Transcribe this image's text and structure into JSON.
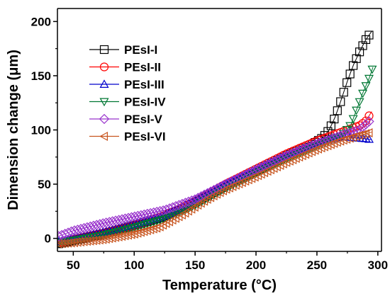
{
  "chart_data": {
    "type": "scatter",
    "title": "",
    "xlabel": "Temperature (°C)",
    "ylabel": "Dimension change (μm)",
    "xlim": [
      37,
      303
    ],
    "ylim": [
      -12,
      212
    ],
    "x_ticks": [
      50,
      100,
      150,
      200,
      250,
      300
    ],
    "y_ticks": [
      0,
      50,
      100,
      150,
      200
    ],
    "grid": false,
    "legend_position": "top-left",
    "series": [
      {
        "name": "PEsI-I",
        "color": "#000000",
        "marker": "square",
        "points": [
          [
            38,
            -5
          ],
          [
            50,
            -2
          ],
          [
            75,
            4
          ],
          [
            100,
            12
          ],
          [
            125,
            20
          ],
          [
            150,
            33
          ],
          [
            175,
            48
          ],
          [
            200,
            62
          ],
          [
            225,
            76
          ],
          [
            245,
            86
          ],
          [
            255,
            93
          ],
          [
            260,
            100
          ],
          [
            265,
            112
          ],
          [
            270,
            128
          ],
          [
            275,
            145
          ],
          [
            280,
            160
          ],
          [
            285,
            172
          ],
          [
            290,
            183
          ],
          [
            295,
            191
          ]
        ]
      },
      {
        "name": "PEsI-II",
        "color": "#ff0000",
        "marker": "circle",
        "points": [
          [
            38,
            -4
          ],
          [
            50,
            -1
          ],
          [
            75,
            5
          ],
          [
            100,
            12
          ],
          [
            125,
            21
          ],
          [
            150,
            34
          ],
          [
            175,
            50
          ],
          [
            200,
            64
          ],
          [
            225,
            78
          ],
          [
            250,
            90
          ],
          [
            270,
            98
          ],
          [
            285,
            104
          ],
          [
            290,
            108
          ],
          [
            295,
            117
          ]
        ]
      },
      {
        "name": "PEsI-III",
        "color": "#0000cc",
        "marker": "triangle-up",
        "points": [
          [
            38,
            -3
          ],
          [
            50,
            0
          ],
          [
            75,
            6
          ],
          [
            100,
            13
          ],
          [
            125,
            21
          ],
          [
            150,
            35
          ],
          [
            175,
            50
          ],
          [
            200,
            64
          ],
          [
            225,
            77
          ],
          [
            250,
            88
          ],
          [
            270,
            94
          ],
          [
            280,
            93
          ],
          [
            290,
            92
          ],
          [
            295,
            91
          ]
        ]
      },
      {
        "name": "PEsI-IV",
        "color": "#007733",
        "marker": "triangle-down",
        "points": [
          [
            38,
            -4
          ],
          [
            50,
            -2
          ],
          [
            75,
            3
          ],
          [
            100,
            10
          ],
          [
            125,
            18
          ],
          [
            150,
            30
          ],
          [
            175,
            46
          ],
          [
            200,
            60
          ],
          [
            225,
            73
          ],
          [
            250,
            85
          ],
          [
            270,
            94
          ],
          [
            278,
            105
          ],
          [
            283,
            120
          ],
          [
            288,
            135
          ],
          [
            293,
            148
          ],
          [
            296,
            158
          ]
        ]
      },
      {
        "name": "PEsI-V",
        "color": "#9933cc",
        "marker": "diamond",
        "points": [
          [
            38,
            2
          ],
          [
            50,
            7
          ],
          [
            75,
            14
          ],
          [
            100,
            20
          ],
          [
            125,
            26
          ],
          [
            150,
            36
          ],
          [
            175,
            50
          ],
          [
            200,
            63
          ],
          [
            225,
            76
          ],
          [
            250,
            87
          ],
          [
            270,
            95
          ],
          [
            285,
            100
          ],
          [
            295,
            110
          ]
        ]
      },
      {
        "name": "PEsI-VI",
        "color": "#c8551f",
        "marker": "triangle-left",
        "points": [
          [
            38,
            -5
          ],
          [
            50,
            -4
          ],
          [
            75,
            -1
          ],
          [
            100,
            4
          ],
          [
            120,
            10
          ],
          [
            140,
            22
          ],
          [
            160,
            36
          ],
          [
            175,
            45
          ],
          [
            200,
            57
          ],
          [
            225,
            70
          ],
          [
            250,
            82
          ],
          [
            270,
            90
          ],
          [
            285,
            95
          ],
          [
            295,
            98
          ]
        ]
      }
    ]
  }
}
